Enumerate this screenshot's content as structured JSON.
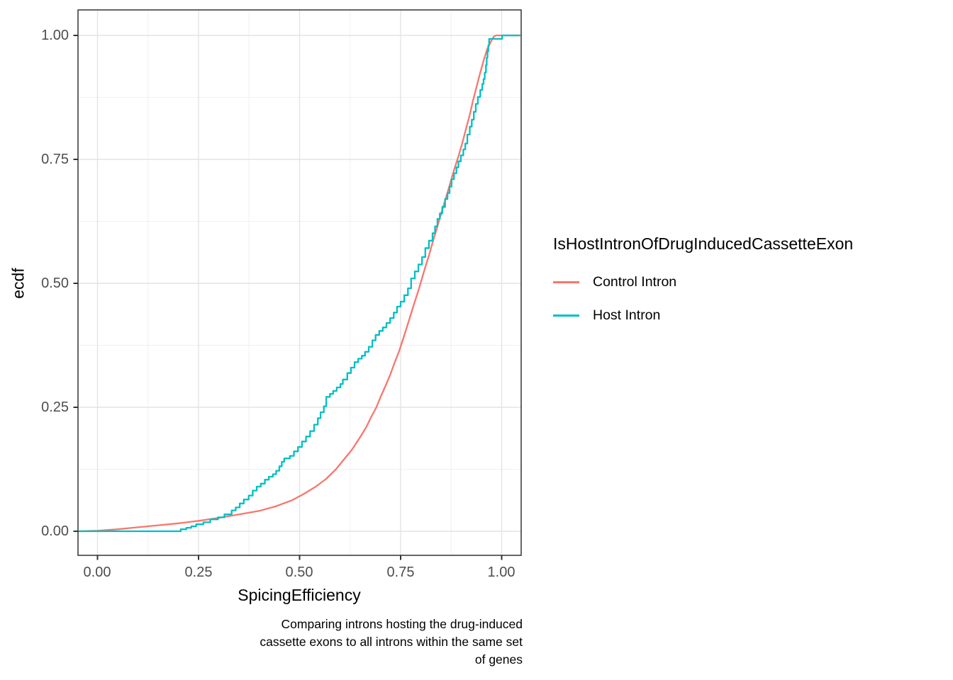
{
  "figure": {
    "y_axis_title": "ecdf",
    "x_axis_title": "SpicingEfficiency",
    "caption_lines": [
      "Comparing introns hosting the drug-induced",
      "cassette exons to all introns within the same set",
      "of genes"
    ],
    "legend": {
      "title": "IsHostIntronOfDrugInducedCassetteExon",
      "entries": [
        {
          "label": "Control Intron",
          "color": "#F8766D"
        },
        {
          "label": "Host Intron",
          "color": "#00BFC4"
        }
      ]
    },
    "colors": {
      "control": "#F8766D",
      "host": "#00BFC4",
      "panel_border": "#333333",
      "grid_major": "#e3e3e3",
      "grid_minor": "#f0f0f0",
      "tick": "#333333",
      "tick_text": "#4d4d4d"
    }
  },
  "chart_data": {
    "type": "line",
    "subtype": "ecdf-step",
    "title": "",
    "xlabel": "SpicingEfficiency",
    "ylabel": "ecdf",
    "caption": "Comparing introns hosting the drug-induced cassette exons to all introns within the same set of genes",
    "xlim": [
      -0.048,
      1.048
    ],
    "ylim": [
      -0.049,
      1.051
    ],
    "x_ticks": [
      0,
      0.25,
      0.5,
      0.75,
      1
    ],
    "x_tick_labels": [
      "0.00",
      "0.25",
      "0.50",
      "0.75",
      "1.00"
    ],
    "y_ticks": [
      0,
      0.25,
      0.5,
      0.75,
      1
    ],
    "y_tick_labels": [
      "0.00",
      "0.25",
      "0.50",
      "0.75",
      "1.00"
    ],
    "grid": "major+minor",
    "legend_position": "right",
    "legend_title": "IsHostIntronOfDrugInducedCassetteExon",
    "series": [
      {
        "name": "Control Intron",
        "color": "#F8766D",
        "interpolation": "linear",
        "points": [
          [
            -0.048,
            0
          ],
          [
            0.0,
            0.001
          ],
          [
            0.05,
            0.004
          ],
          [
            0.1,
            0.008
          ],
          [
            0.15,
            0.012
          ],
          [
            0.2,
            0.016
          ],
          [
            0.25,
            0.021
          ],
          [
            0.3,
            0.027
          ],
          [
            0.35,
            0.034
          ],
          [
            0.4,
            0.041
          ],
          [
            0.44,
            0.05
          ],
          [
            0.48,
            0.062
          ],
          [
            0.51,
            0.075
          ],
          [
            0.54,
            0.09
          ],
          [
            0.565,
            0.105
          ],
          [
            0.59,
            0.125
          ],
          [
            0.61,
            0.145
          ],
          [
            0.63,
            0.165
          ],
          [
            0.65,
            0.19
          ],
          [
            0.665,
            0.21
          ],
          [
            0.677,
            0.23
          ],
          [
            0.69,
            0.25
          ],
          [
            0.7,
            0.27
          ],
          [
            0.712,
            0.292
          ],
          [
            0.724,
            0.315
          ],
          [
            0.735,
            0.34
          ],
          [
            0.747,
            0.365
          ],
          [
            0.757,
            0.39
          ],
          [
            0.766,
            0.413
          ],
          [
            0.775,
            0.437
          ],
          [
            0.783,
            0.458
          ],
          [
            0.792,
            0.48
          ],
          [
            0.801,
            0.505
          ],
          [
            0.81,
            0.53
          ],
          [
            0.82,
            0.556
          ],
          [
            0.83,
            0.585
          ],
          [
            0.84,
            0.612
          ],
          [
            0.85,
            0.64
          ],
          [
            0.86,
            0.667
          ],
          [
            0.871,
            0.697
          ],
          [
            0.882,
            0.728
          ],
          [
            0.893,
            0.756
          ],
          [
            0.903,
            0.784
          ],
          [
            0.912,
            0.812
          ],
          [
            0.921,
            0.84
          ],
          [
            0.929,
            0.868
          ],
          [
            0.938,
            0.897
          ],
          [
            0.947,
            0.925
          ],
          [
            0.956,
            0.951
          ],
          [
            0.964,
            0.972
          ],
          [
            0.973,
            0.987
          ],
          [
            0.98,
            0.997
          ],
          [
            0.985,
            1.0
          ],
          [
            1.046,
            1.0
          ]
        ]
      },
      {
        "name": "Host Intron",
        "color": "#00BFC4",
        "interpolation": "step-after",
        "points": [
          [
            -0.048,
            0
          ],
          [
            0.206,
            0.004
          ],
          [
            0.22,
            0.007
          ],
          [
            0.232,
            0.01
          ],
          [
            0.244,
            0.014
          ],
          [
            0.262,
            0.018
          ],
          [
            0.279,
            0.024
          ],
          [
            0.298,
            0.028
          ],
          [
            0.314,
            0.034
          ],
          [
            0.332,
            0.042
          ],
          [
            0.342,
            0.048
          ],
          [
            0.352,
            0.056
          ],
          [
            0.362,
            0.064
          ],
          [
            0.374,
            0.072
          ],
          [
            0.384,
            0.082
          ],
          [
            0.394,
            0.09
          ],
          [
            0.404,
            0.096
          ],
          [
            0.414,
            0.104
          ],
          [
            0.424,
            0.11
          ],
          [
            0.434,
            0.115
          ],
          [
            0.442,
            0.122
          ],
          [
            0.45,
            0.131
          ],
          [
            0.456,
            0.14
          ],
          [
            0.462,
            0.147
          ],
          [
            0.476,
            0.152
          ],
          [
            0.486,
            0.161
          ],
          [
            0.496,
            0.17
          ],
          [
            0.506,
            0.181
          ],
          [
            0.516,
            0.191
          ],
          [
            0.526,
            0.202
          ],
          [
            0.536,
            0.215
          ],
          [
            0.545,
            0.228
          ],
          [
            0.552,
            0.24
          ],
          [
            0.56,
            0.252
          ],
          [
            0.566,
            0.271
          ],
          [
            0.575,
            0.277
          ],
          [
            0.583,
            0.283
          ],
          [
            0.592,
            0.29
          ],
          [
            0.601,
            0.297
          ],
          [
            0.607,
            0.306
          ],
          [
            0.618,
            0.319
          ],
          [
            0.627,
            0.33
          ],
          [
            0.636,
            0.341
          ],
          [
            0.645,
            0.348
          ],
          [
            0.654,
            0.354
          ],
          [
            0.662,
            0.362
          ],
          [
            0.671,
            0.372
          ],
          [
            0.68,
            0.385
          ],
          [
            0.688,
            0.396
          ],
          [
            0.697,
            0.404
          ],
          [
            0.706,
            0.411
          ],
          [
            0.715,
            0.42
          ],
          [
            0.724,
            0.43
          ],
          [
            0.733,
            0.441
          ],
          [
            0.741,
            0.453
          ],
          [
            0.75,
            0.463
          ],
          [
            0.759,
            0.476
          ],
          [
            0.768,
            0.49
          ],
          [
            0.776,
            0.51
          ],
          [
            0.785,
            0.524
          ],
          [
            0.794,
            0.538
          ],
          [
            0.803,
            0.553
          ],
          [
            0.811,
            0.571
          ],
          [
            0.82,
            0.586
          ],
          [
            0.829,
            0.601
          ],
          [
            0.835,
            0.615
          ],
          [
            0.841,
            0.63
          ],
          [
            0.847,
            0.641
          ],
          [
            0.853,
            0.654
          ],
          [
            0.86,
            0.67
          ],
          [
            0.866,
            0.682
          ],
          [
            0.871,
            0.695
          ],
          [
            0.876,
            0.71
          ],
          [
            0.882,
            0.722
          ],
          [
            0.888,
            0.734
          ],
          [
            0.893,
            0.746
          ],
          [
            0.899,
            0.758
          ],
          [
            0.905,
            0.77
          ],
          [
            0.91,
            0.782
          ],
          [
            0.915,
            0.8
          ],
          [
            0.921,
            0.816
          ],
          [
            0.926,
            0.83
          ],
          [
            0.931,
            0.846
          ],
          [
            0.936,
            0.862
          ],
          [
            0.941,
            0.876
          ],
          [
            0.947,
            0.89
          ],
          [
            0.952,
            0.902
          ],
          [
            0.955,
            0.912
          ],
          [
            0.958,
            0.925
          ],
          [
            0.961,
            0.94
          ],
          [
            0.963,
            0.955
          ],
          [
            0.965,
            0.968
          ],
          [
            0.967,
            0.98
          ],
          [
            0.969,
            0.993
          ],
          [
            1.001,
            1.0
          ],
          [
            1.046,
            1.0
          ]
        ]
      }
    ]
  }
}
